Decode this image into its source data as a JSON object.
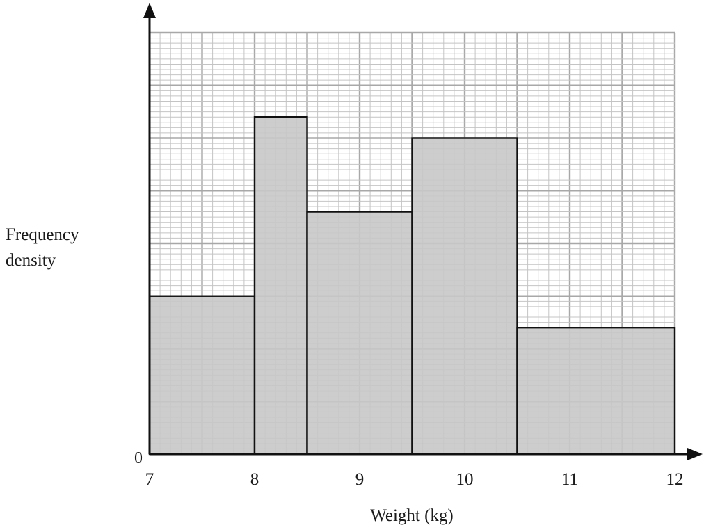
{
  "chart_data": {
    "type": "histogram",
    "xlabel": "Weight (kg)",
    "ylabel_lines": [
      "Frequency",
      "density"
    ],
    "origin_label": "0",
    "x_ticks": [
      7,
      8,
      9,
      10,
      11,
      12
    ],
    "x_range": [
      7,
      12
    ],
    "y_range": [
      0,
      8
    ],
    "y_ticks_labeled": false,
    "grid": true,
    "bars": [
      {
        "x0": 7.0,
        "x1": 8.0,
        "height": 3.0
      },
      {
        "x0": 8.0,
        "x1": 8.5,
        "height": 6.4
      },
      {
        "x0": 8.5,
        "x1": 9.5,
        "height": 4.6
      },
      {
        "x0": 9.5,
        "x1": 10.5,
        "height": 6.0
      },
      {
        "x0": 10.5,
        "x1": 12.0,
        "height": 2.4
      }
    ],
    "colors": {
      "bar_fill": "#c8c8c8",
      "bar_stroke": "#111111",
      "grid_major": "#a8a8a8",
      "grid_minor": "#c4c4c4",
      "axis": "#111111"
    }
  }
}
